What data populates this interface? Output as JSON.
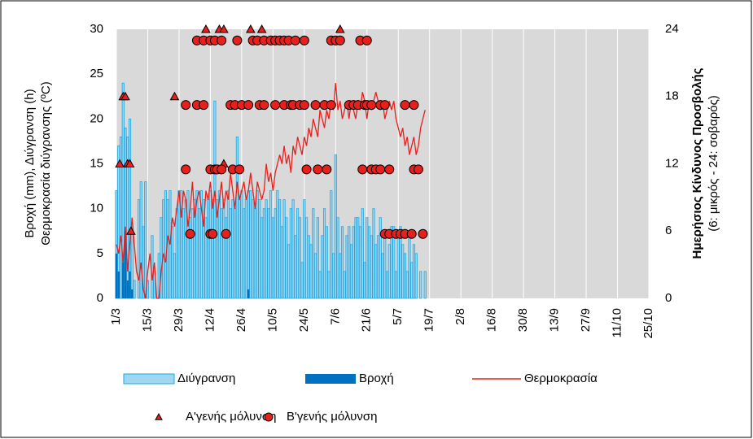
{
  "chart_data": {
    "type": "combo",
    "y_label": [
      "Βροχή (mm), Διύγρανση (h)",
      "Θερμοκρασία διύγρανσης (ºC)"
    ],
    "y2_label": [
      "Ημερήσιος Κίνδυνος Προσβολής",
      "(6: μικρός - 24: σοβαρός)"
    ],
    "xlim": [
      0,
      238
    ],
    "xticks": [
      {
        "value": 0,
        "label": "1/3"
      },
      {
        "value": 14,
        "label": "15/3"
      },
      {
        "value": 28,
        "label": "29/3"
      },
      {
        "value": 42,
        "label": "12/4"
      },
      {
        "value": 56,
        "label": "26/4"
      },
      {
        "value": 70,
        "label": "10/5"
      },
      {
        "value": 84,
        "label": "24/5"
      },
      {
        "value": 98,
        "label": "7/6"
      },
      {
        "value": 112,
        "label": "21/6"
      },
      {
        "value": 126,
        "label": "5/7"
      },
      {
        "value": 140,
        "label": "19/7"
      },
      {
        "value": 154,
        "label": "2/8"
      },
      {
        "value": 168,
        "label": "16/8"
      },
      {
        "value": 182,
        "label": "30/8"
      },
      {
        "value": 196,
        "label": "13/9"
      },
      {
        "value": 210,
        "label": "27/9"
      },
      {
        "value": 224,
        "label": "11/10"
      },
      {
        "value": 238,
        "label": "25/10"
      }
    ],
    "ylim": [
      0,
      30
    ],
    "yticks": [
      0,
      5,
      10,
      15,
      20,
      25,
      30
    ],
    "y2lim": [
      0,
      24
    ],
    "y2ticks": [
      0,
      6,
      12,
      18,
      24
    ],
    "grid": "x",
    "x": [
      0,
      1,
      2,
      3,
      4,
      5,
      6,
      7,
      8,
      9,
      10,
      11,
      12,
      13,
      14,
      15,
      16,
      17,
      18,
      19,
      20,
      21,
      22,
      23,
      24,
      25,
      26,
      27,
      28,
      29,
      30,
      31,
      32,
      33,
      34,
      35,
      36,
      37,
      38,
      39,
      40,
      41,
      42,
      43,
      44,
      45,
      46,
      47,
      48,
      49,
      50,
      51,
      52,
      53,
      54,
      55,
      56,
      57,
      58,
      59,
      60,
      61,
      62,
      63,
      64,
      65,
      66,
      67,
      68,
      69,
      70,
      71,
      72,
      73,
      74,
      75,
      76,
      77,
      78,
      79,
      80,
      81,
      82,
      83,
      84,
      85,
      86,
      87,
      88,
      89,
      90,
      91,
      92,
      93,
      94,
      95,
      96,
      97,
      98,
      99,
      100,
      101,
      102,
      103,
      104,
      105,
      106,
      107,
      108,
      109,
      110,
      111,
      112,
      113,
      114,
      115,
      116,
      117,
      118,
      119,
      120,
      121,
      122,
      123,
      124,
      125,
      126,
      127,
      128,
      129,
      130,
      131,
      132,
      133,
      134,
      135,
      136,
      137,
      138
    ],
    "series": [
      {
        "name": "Διύγρανση",
        "type": "bar",
        "color": "#9fd7f2",
        "stroke": "#1ea7e0",
        "values": [
          12,
          17,
          18,
          24,
          19,
          18,
          20,
          8,
          2,
          0,
          11,
          13,
          8,
          13,
          2,
          0,
          7,
          3,
          0,
          5,
          9,
          11,
          12,
          11,
          12,
          8,
          5,
          10,
          12,
          12,
          10,
          11,
          12,
          9,
          10,
          11,
          12,
          10,
          12,
          11,
          9,
          11,
          12,
          11,
          22,
          11,
          12,
          10,
          11,
          9,
          12,
          10,
          11,
          10,
          18,
          11,
          12,
          10,
          11,
          12,
          12,
          11,
          10,
          12,
          11,
          9,
          10,
          11,
          10,
          12,
          9,
          10,
          12,
          11,
          8,
          11,
          9,
          6,
          10,
          11,
          7,
          10,
          9,
          4,
          11,
          9,
          7,
          6,
          10,
          5,
          9,
          3,
          7,
          10,
          8,
          3,
          12,
          5,
          16,
          9,
          5,
          8,
          3,
          7,
          8,
          6,
          8,
          9,
          9,
          8,
          10,
          4,
          9,
          8,
          7,
          10,
          6,
          7,
          9,
          5,
          7,
          3,
          6,
          8,
          8,
          3,
          7,
          8,
          6,
          5,
          3,
          7,
          4,
          6,
          5,
          0,
          3,
          0,
          3
        ]
      },
      {
        "name": "Βροχή",
        "type": "bar",
        "color": "#0070c0",
        "values": [
          5,
          3,
          0,
          4,
          7,
          2,
          3,
          1,
          0,
          0,
          0,
          0,
          0,
          0,
          0,
          0,
          0,
          0,
          0,
          0,
          0,
          0,
          0,
          0,
          0,
          0,
          0,
          0,
          0,
          0,
          0,
          0,
          0,
          0,
          0,
          0,
          0,
          0,
          0,
          0,
          0,
          0,
          0,
          0,
          0,
          0,
          0,
          0,
          0,
          0,
          0,
          0,
          0,
          0,
          0,
          0,
          0,
          0,
          0,
          1,
          0,
          0,
          0,
          0,
          0,
          0,
          0,
          0,
          0,
          0,
          0,
          0,
          0,
          0,
          0,
          0,
          0,
          0,
          0,
          0,
          0,
          0,
          0,
          0,
          0,
          0,
          0,
          0,
          0,
          0,
          0,
          0,
          0,
          0,
          0,
          0,
          0,
          0,
          0,
          0,
          0,
          0,
          0,
          0,
          0,
          0,
          0,
          0,
          0,
          0,
          0,
          0,
          0,
          0,
          0,
          0,
          0,
          0,
          0,
          0,
          0,
          0,
          0,
          0,
          0,
          0,
          0,
          0,
          0,
          0,
          0,
          0,
          0,
          0,
          0,
          0,
          0,
          0,
          0
        ]
      },
      {
        "name": "Θερμοκρασία",
        "type": "line",
        "color": "#e8201c",
        "values": [
          6,
          5,
          7,
          4,
          8,
          3,
          6,
          9,
          6,
          3,
          2,
          4,
          1,
          0,
          3,
          5,
          2,
          4,
          0,
          0,
          3,
          5,
          4,
          7,
          6,
          9,
          8,
          10,
          12,
          9,
          12,
          11,
          8,
          10,
          13,
          9,
          11,
          12,
          10,
          8,
          12,
          11,
          13,
          10,
          12,
          9,
          11,
          13,
          10,
          12,
          11,
          14,
          12,
          10,
          13,
          11,
          12,
          13,
          11,
          12,
          14,
          12,
          10,
          13,
          12,
          11,
          12,
          15,
          13,
          14,
          12,
          14,
          15,
          16,
          15,
          17,
          15,
          16,
          14,
          17,
          16,
          18,
          17,
          16,
          18,
          17,
          19,
          18,
          20,
          19,
          18,
          21,
          20,
          19,
          21,
          20,
          22,
          21,
          24,
          21,
          22,
          20,
          21,
          22,
          20,
          22,
          21,
          20,
          22,
          21,
          23,
          22,
          20,
          22,
          21,
          22,
          23,
          22,
          21,
          22,
          20,
          21,
          22,
          21,
          22,
          20,
          19,
          18,
          19,
          17,
          18,
          16,
          17,
          18,
          16,
          17,
          19,
          20,
          21
        ]
      },
      {
        "name": "Α'γενής μόλυνση",
        "type": "triangle",
        "axis": "y2",
        "color": "#e8201c",
        "x": [
          1.5,
          3,
          4,
          5,
          6,
          6.5,
          26,
          40,
          46,
          48,
          48,
          60,
          65,
          100
        ],
        "values": [
          12,
          18,
          18,
          12,
          12,
          6,
          18,
          24,
          24,
          24,
          12,
          24,
          24,
          24
        ]
      },
      {
        "name": "Β'γενής μόλυνση",
        "type": "circle",
        "axis": "y2",
        "color": "#e8201c",
        "x": [
          36,
          39,
          42,
          44,
          47,
          54,
          61,
          63,
          66,
          69,
          71,
          73,
          75,
          77,
          80,
          84,
          96,
          98,
          100,
          109,
          112,
          31,
          36,
          39,
          51,
          53,
          56,
          59,
          64,
          66,
          71,
          75,
          78,
          79,
          82,
          84,
          89,
          93,
          96,
          104,
          106,
          108,
          111,
          112,
          114,
          118,
          120,
          129,
          133,
          31,
          42,
          44,
          45,
          47,
          52,
          55,
          85,
          90,
          94,
          110,
          114,
          116,
          118,
          122,
          133,
          135,
          33,
          42,
          43,
          49,
          120,
          122,
          125,
          127,
          129,
          132,
          137
        ],
        "values": [
          23,
          23,
          23,
          23,
          23,
          23,
          23,
          23,
          23,
          23,
          23,
          23,
          23,
          23,
          23,
          23,
          23,
          23,
          23,
          23,
          23,
          17.25,
          17.25,
          17.25,
          17.25,
          17.25,
          17.25,
          17.25,
          17.25,
          17.25,
          17.25,
          17.25,
          17.25,
          17.25,
          17.25,
          17.25,
          17.25,
          17.25,
          17.25,
          17.25,
          17.25,
          17.25,
          17.25,
          17.25,
          17.25,
          17.25,
          17.25,
          17.25,
          17.25,
          11.5,
          11.5,
          11.5,
          11.5,
          11.5,
          11.5,
          11.5,
          11.5,
          11.5,
          11.5,
          11.5,
          11.5,
          11.5,
          11.5,
          11.5,
          11.5,
          11.5,
          5.75,
          5.75,
          5.75,
          5.75,
          5.75,
          5.75,
          5.75,
          5.75,
          5.75,
          5.75,
          5.75
        ]
      }
    ]
  }
}
